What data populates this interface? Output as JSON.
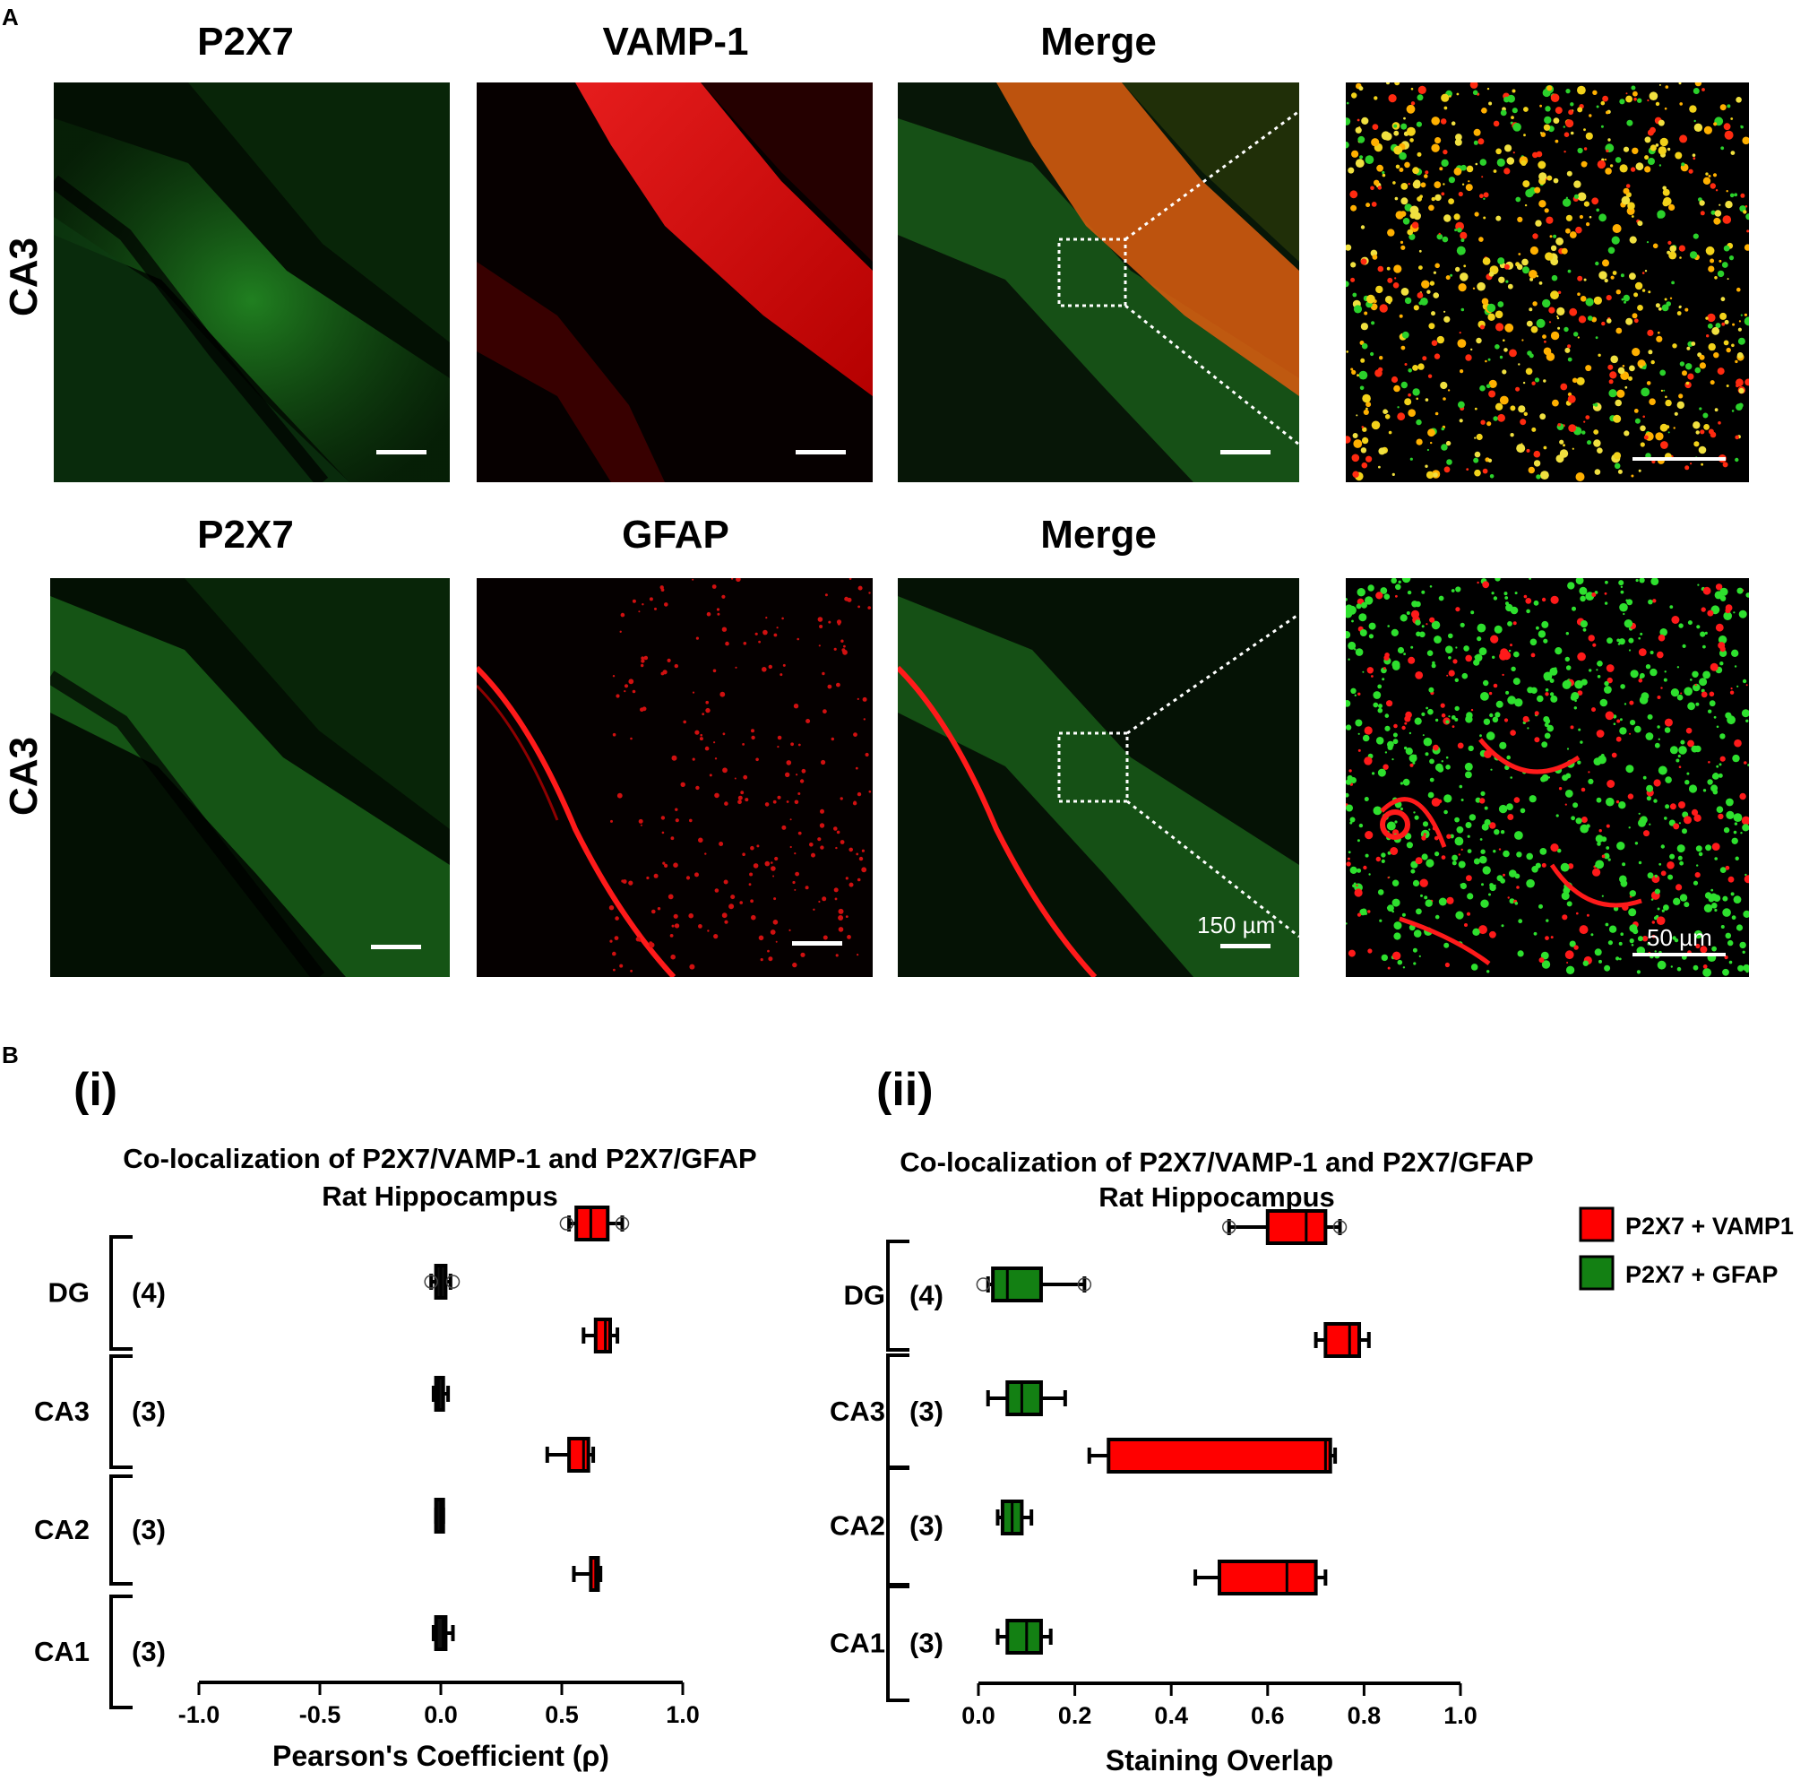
{
  "panels": {
    "A": "A",
    "B": "B"
  },
  "micrographs": {
    "row1": {
      "row_label": "CA3",
      "titles": [
        "P2X7",
        "VAMP-1",
        "Merge"
      ]
    },
    "row2": {
      "row_label": "CA3",
      "titles": [
        "P2X7",
        "GFAP",
        "Merge"
      ]
    },
    "scale_labels": {
      "main": "150 µm",
      "zoom": "50 µm"
    }
  },
  "colors": {
    "green_channel": "#1fa31f",
    "red_channel": "#ff1a1a",
    "vamp_box": "#ff0000",
    "gfap_box": "#138013"
  },
  "chart_data": [
    {
      "type": "box",
      "panel_label": "(i)",
      "title": "Co-localization of P2X7/VAMP-1 and P2X7/GFAP",
      "subtitle": "Rat Hippocampus",
      "xlabel": "Pearson's Coefficient (ρ)",
      "xlim": [
        -1.0,
        1.0
      ],
      "xticks": [
        "-1.0",
        "-0.5",
        "0.0",
        "0.5",
        "1.0"
      ],
      "xtick_values": [
        -1.0,
        -0.5,
        0.0,
        0.5,
        1.0
      ],
      "groups": [
        {
          "name": "DG",
          "n": "(4)",
          "vamp": {
            "whisker_low": 0.53,
            "q1": 0.56,
            "median": 0.62,
            "q3": 0.69,
            "whisker_high": 0.75,
            "outliers": [
              0.52,
              0.75
            ]
          },
          "gfap": {
            "whisker_low": -0.04,
            "q1": -0.02,
            "median": 0.0,
            "q3": 0.02,
            "whisker_high": 0.04,
            "outliers": [
              -0.04,
              0.05
            ]
          }
        },
        {
          "name": "CA3",
          "n": "(3)",
          "vamp": {
            "whisker_low": 0.59,
            "q1": 0.64,
            "median": 0.68,
            "q3": 0.7,
            "whisker_high": 0.73,
            "outliers": []
          },
          "gfap": {
            "whisker_low": -0.03,
            "q1": -0.02,
            "median": -0.01,
            "q3": 0.01,
            "whisker_high": 0.03,
            "outliers": []
          }
        },
        {
          "name": "CA2",
          "n": "(3)",
          "vamp": {
            "whisker_low": 0.44,
            "q1": 0.53,
            "median": 0.59,
            "q3": 0.61,
            "whisker_high": 0.63,
            "outliers": []
          },
          "gfap": {
            "whisker_low": -0.02,
            "q1": -0.02,
            "median": 0.0,
            "q3": 0.01,
            "whisker_high": 0.01,
            "outliers": []
          }
        },
        {
          "name": "CA1",
          "n": "(3)",
          "vamp": {
            "whisker_low": 0.55,
            "q1": 0.62,
            "median": 0.64,
            "q3": 0.65,
            "whisker_high": 0.66,
            "outliers": []
          },
          "gfap": {
            "whisker_low": -0.03,
            "q1": -0.02,
            "median": 0.01,
            "q3": 0.02,
            "whisker_high": 0.05,
            "outliers": []
          }
        }
      ]
    },
    {
      "type": "box",
      "panel_label": "(ii)",
      "title": "Co-localization of P2X7/VAMP-1 and P2X7/GFAP",
      "subtitle": "Rat Hippocampus",
      "xlabel": "Staining Overlap",
      "xlim": [
        0.0,
        1.0
      ],
      "xticks": [
        "0.0",
        "0.2",
        "0.4",
        "0.6",
        "0.8",
        "1.0"
      ],
      "xtick_values": [
        0.0,
        0.2,
        0.4,
        0.6,
        0.8,
        1.0
      ],
      "legend": [
        {
          "name": "P2X7 + VAMP1",
          "color": "#ff0000"
        },
        {
          "name": "P2X7 + GFAP",
          "color": "#138013"
        }
      ],
      "legend_position": "right",
      "groups": [
        {
          "name": "DG",
          "n": "(4)",
          "vamp": {
            "whisker_low": 0.52,
            "q1": 0.6,
            "median": 0.68,
            "q3": 0.72,
            "whisker_high": 0.75,
            "outliers": [
              0.52,
              0.75
            ]
          },
          "gfap": {
            "whisker_low": 0.02,
            "q1": 0.03,
            "median": 0.06,
            "q3": 0.13,
            "whisker_high": 0.22,
            "outliers": [
              0.01,
              0.22
            ]
          }
        },
        {
          "name": "CA3",
          "n": "(3)",
          "vamp": {
            "whisker_low": 0.7,
            "q1": 0.72,
            "median": 0.77,
            "q3": 0.79,
            "whisker_high": 0.81,
            "outliers": []
          },
          "gfap": {
            "whisker_low": 0.02,
            "q1": 0.06,
            "median": 0.09,
            "q3": 0.13,
            "whisker_high": 0.18,
            "outliers": []
          }
        },
        {
          "name": "CA2",
          "n": "(3)",
          "vamp": {
            "whisker_low": 0.23,
            "q1": 0.27,
            "median": 0.72,
            "q3": 0.73,
            "whisker_high": 0.74,
            "outliers": []
          },
          "gfap": {
            "whisker_low": 0.04,
            "q1": 0.05,
            "median": 0.07,
            "q3": 0.09,
            "whisker_high": 0.11,
            "outliers": []
          }
        },
        {
          "name": "CA1",
          "n": "(3)",
          "vamp": {
            "whisker_low": 0.45,
            "q1": 0.5,
            "median": 0.64,
            "q3": 0.7,
            "whisker_high": 0.72,
            "outliers": []
          },
          "gfap": {
            "whisker_low": 0.04,
            "q1": 0.06,
            "median": 0.1,
            "q3": 0.13,
            "whisker_high": 0.15,
            "outliers": []
          }
        }
      ]
    }
  ]
}
